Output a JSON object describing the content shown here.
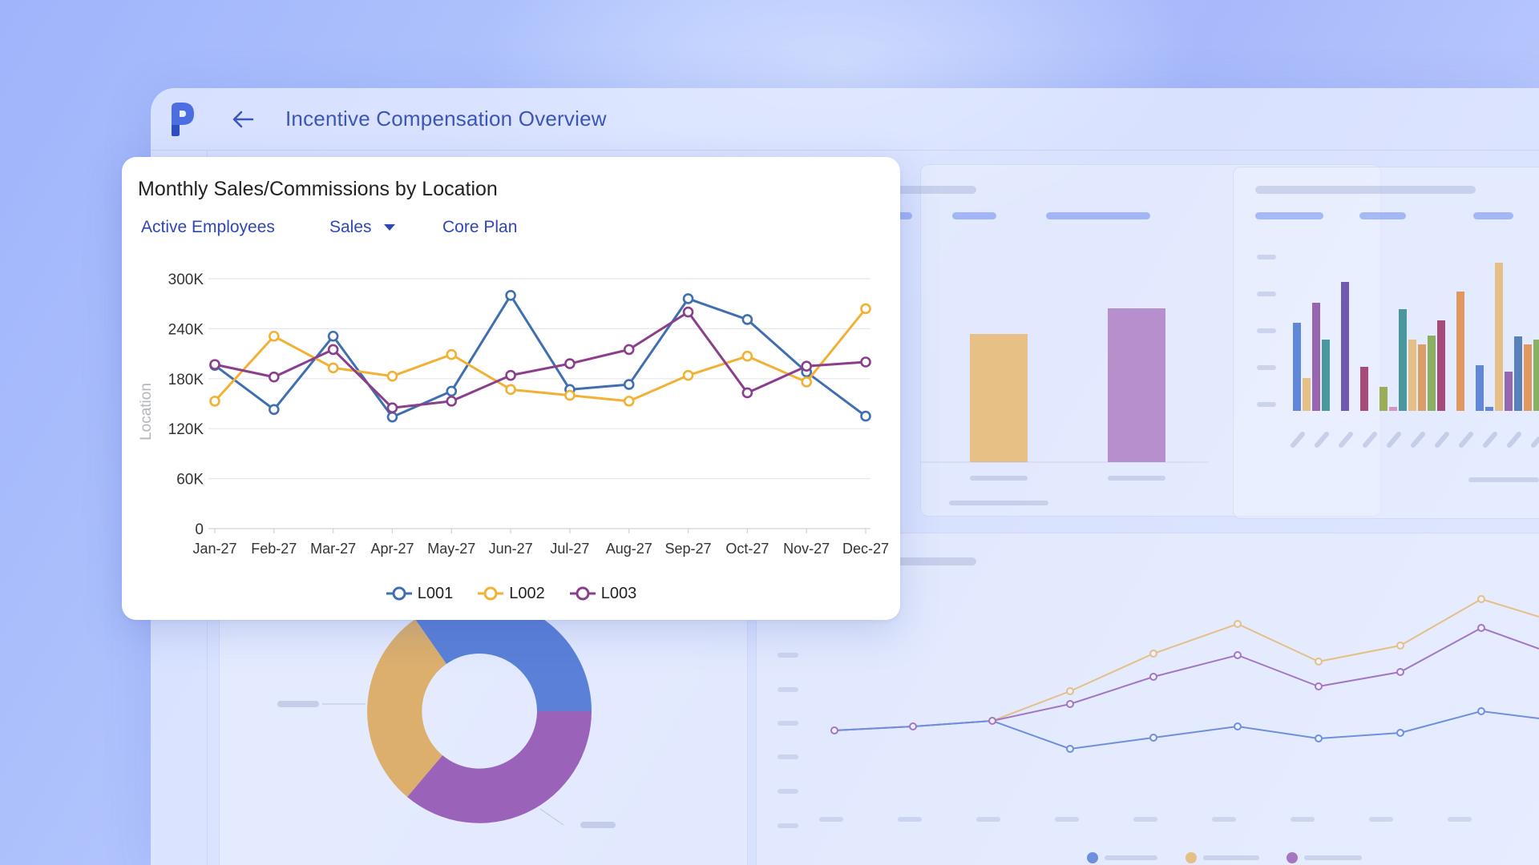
{
  "header": {
    "title": "Incentive Compensation Overview",
    "back_icon": "arrow-left-icon",
    "logo_icon": "p-logo-icon"
  },
  "card": {
    "title": "Monthly Sales/Commissions by Location",
    "filters": [
      {
        "label": "Active Employees",
        "has_dropdown": false
      },
      {
        "label": "Sales",
        "has_dropdown": true
      },
      {
        "label": "Core Plan",
        "has_dropdown": false
      }
    ]
  },
  "colors": {
    "L001": "#3f6fb0",
    "L002": "#f2b134",
    "L003": "#8a3f8c",
    "accent": "#2f47b4"
  },
  "chart_data": {
    "type": "line",
    "title": "Monthly Sales/Commissions by Location",
    "xlabel": "",
    "ylabel": "Location",
    "categories": [
      "Jan-27",
      "Feb-27",
      "Mar-27",
      "Apr-27",
      "May-27",
      "Jun-27",
      "Jul-27",
      "Aug-27",
      "Sep-27",
      "Oct-27",
      "Nov-27",
      "Dec-27"
    ],
    "y_ticks": [
      {
        "value": 0,
        "label": "0"
      },
      {
        "value": 60000,
        "label": "60K"
      },
      {
        "value": 120000,
        "label": "120K"
      },
      {
        "value": 180000,
        "label": "180K"
      },
      {
        "value": 240000,
        "label": "240K"
      },
      {
        "value": 300000,
        "label": "300K"
      }
    ],
    "ylim": [
      0,
      300000
    ],
    "grid": true,
    "legend": "bottom-center",
    "series": [
      {
        "name": "L001",
        "values": [
          196000,
          143000,
          231000,
          134000,
          165000,
          280000,
          167000,
          173000,
          276000,
          251000,
          188000,
          135000
        ]
      },
      {
        "name": "L002",
        "values": [
          153000,
          231000,
          193000,
          183000,
          209000,
          167000,
          160000,
          153000,
          184000,
          207000,
          176000,
          264000
        ]
      },
      {
        "name": "L003",
        "values": [
          197000,
          182000,
          215000,
          145000,
          153000,
          184000,
          198000,
          215000,
          260000,
          163000,
          195000,
          200000
        ]
      }
    ]
  }
}
